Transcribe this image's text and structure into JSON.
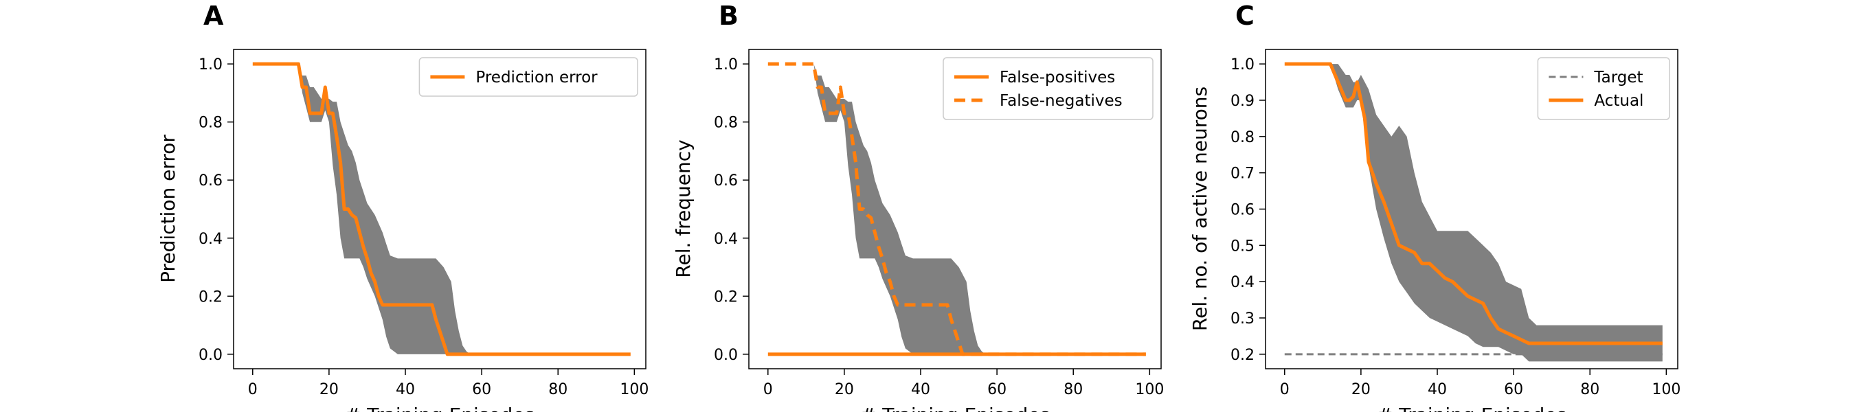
{
  "colors": {
    "orange": "#ff7f0e",
    "band": "#808080",
    "target": "#808080"
  },
  "chart_data": [
    {
      "type": "line",
      "panel_letter": "A",
      "xlabel": "# Training Episodes",
      "ylabel": "Prediction error",
      "xlim": [
        -5,
        103
      ],
      "ylim": [
        -0.05,
        1.05
      ],
      "xticks": [
        0,
        20,
        40,
        60,
        80,
        100
      ],
      "yticks": [
        0.0,
        0.2,
        0.4,
        0.6,
        0.8,
        1.0
      ],
      "ytick_labels": [
        "0.0",
        "0.2",
        "0.4",
        "0.6",
        "0.8",
        "1.0"
      ],
      "legend": {
        "position": "top-right",
        "entries": [
          "Prediction error"
        ]
      },
      "band": {
        "x": [
          0,
          12,
          13,
          14,
          15,
          16,
          17,
          18,
          19,
          20,
          21,
          22,
          23,
          24,
          25,
          26,
          27,
          28,
          29,
          30,
          32,
          34,
          35,
          36,
          38,
          40,
          42,
          44,
          46,
          48,
          50,
          52,
          53,
          54,
          55,
          56,
          57,
          58,
          60,
          70,
          80,
          90,
          99
        ],
        "upper": [
          1.0,
          1.0,
          0.96,
          0.96,
          0.92,
          0.92,
          0.9,
          0.88,
          0.88,
          0.88,
          0.87,
          0.87,
          0.8,
          0.76,
          0.72,
          0.7,
          0.66,
          0.6,
          0.56,
          0.52,
          0.48,
          0.42,
          0.38,
          0.34,
          0.33,
          0.33,
          0.33,
          0.33,
          0.33,
          0.33,
          0.3,
          0.25,
          0.15,
          0.08,
          0.03,
          0.01,
          0,
          0,
          0,
          0,
          0,
          0,
          0
        ],
        "lower": [
          1.0,
          1.0,
          0.9,
          0.85,
          0.8,
          0.8,
          0.8,
          0.8,
          0.84,
          0.8,
          0.65,
          0.55,
          0.4,
          0.33,
          0.33,
          0.33,
          0.33,
          0.33,
          0.3,
          0.26,
          0.2,
          0.12,
          0.06,
          0.02,
          0.0,
          0.0,
          0.0,
          0.0,
          0.0,
          0.0,
          0.0,
          0.0,
          0.0,
          0,
          0,
          0,
          0,
          0,
          0,
          0,
          0,
          0,
          0
        ]
      },
      "series": [
        {
          "name": "Prediction error",
          "style": "solid",
          "x": [
            0,
            12,
            13,
            14,
            15,
            16,
            17,
            18,
            19,
            20,
            21,
            22,
            23,
            24,
            25,
            26,
            27,
            28,
            29,
            30,
            31,
            32,
            33,
            34,
            35,
            36,
            37,
            38,
            40,
            42,
            44,
            46,
            47,
            48,
            49,
            50,
            51,
            52,
            55,
            60,
            70,
            80,
            90,
            99
          ],
          "y": [
            1.0,
            1.0,
            0.92,
            0.92,
            0.83,
            0.83,
            0.83,
            0.83,
            0.92,
            0.83,
            0.83,
            0.75,
            0.66,
            0.5,
            0.5,
            0.48,
            0.47,
            0.42,
            0.37,
            0.33,
            0.28,
            0.25,
            0.2,
            0.17,
            0.17,
            0.17,
            0.17,
            0.17,
            0.17,
            0.17,
            0.17,
            0.17,
            0.17,
            0.12,
            0.08,
            0.04,
            0.0,
            0.0,
            0.0,
            0.0,
            0.0,
            0.0,
            0.0,
            0.0
          ]
        }
      ]
    },
    {
      "type": "line",
      "panel_letter": "B",
      "xlabel": "# Training Episodes",
      "ylabel": "Rel. frequency",
      "xlim": [
        -5,
        103
      ],
      "ylim": [
        -0.05,
        1.05
      ],
      "xticks": [
        0,
        20,
        40,
        60,
        80,
        100
      ],
      "yticks": [
        0.0,
        0.2,
        0.4,
        0.6,
        0.8,
        1.0
      ],
      "ytick_labels": [
        "0.0",
        "0.2",
        "0.4",
        "0.6",
        "0.8",
        "1.0"
      ],
      "legend": {
        "position": "top-right",
        "entries": [
          "False-positives",
          "False-negatives"
        ]
      },
      "band": {
        "x": [
          0,
          12,
          13,
          14,
          15,
          16,
          17,
          18,
          19,
          20,
          21,
          22,
          23,
          24,
          25,
          26,
          27,
          28,
          29,
          30,
          32,
          34,
          35,
          36,
          38,
          40,
          42,
          44,
          46,
          48,
          50,
          52,
          53,
          54,
          55,
          56,
          57,
          58,
          60,
          70,
          80,
          90,
          99
        ],
        "upper": [
          1.0,
          1.0,
          0.96,
          0.96,
          0.92,
          0.92,
          0.9,
          0.88,
          0.88,
          0.88,
          0.87,
          0.87,
          0.8,
          0.76,
          0.72,
          0.7,
          0.66,
          0.6,
          0.56,
          0.52,
          0.48,
          0.42,
          0.38,
          0.34,
          0.33,
          0.33,
          0.33,
          0.33,
          0.33,
          0.33,
          0.3,
          0.25,
          0.15,
          0.08,
          0.03,
          0.01,
          0,
          0,
          0,
          0,
          0,
          0,
          0
        ],
        "lower": [
          1.0,
          1.0,
          0.9,
          0.85,
          0.8,
          0.8,
          0.8,
          0.8,
          0.84,
          0.8,
          0.65,
          0.55,
          0.4,
          0.33,
          0.33,
          0.33,
          0.33,
          0.33,
          0.3,
          0.26,
          0.2,
          0.12,
          0.06,
          0.02,
          0.0,
          0.0,
          0.0,
          0.0,
          0.0,
          0.0,
          0.0,
          0.0,
          0.0,
          0,
          0,
          0,
          0,
          0,
          0,
          0,
          0,
          0,
          0
        ]
      },
      "series": [
        {
          "name": "False-positives",
          "style": "solid",
          "x": [
            0,
            99
          ],
          "y": [
            0.0,
            0.0
          ]
        },
        {
          "name": "False-negatives",
          "style": "dashed",
          "x": [
            0,
            12,
            13,
            14,
            15,
            16,
            17,
            18,
            19,
            20,
            21,
            22,
            23,
            24,
            25,
            26,
            27,
            28,
            29,
            30,
            31,
            32,
            33,
            34,
            35,
            36,
            37,
            38,
            40,
            42,
            44,
            46,
            47,
            48,
            49,
            50,
            51,
            52,
            55,
            60,
            70,
            80,
            90,
            99
          ],
          "y": [
            1.0,
            1.0,
            0.92,
            0.92,
            0.83,
            0.83,
            0.83,
            0.83,
            0.92,
            0.83,
            0.83,
            0.75,
            0.66,
            0.5,
            0.5,
            0.48,
            0.47,
            0.42,
            0.37,
            0.33,
            0.28,
            0.25,
            0.2,
            0.17,
            0.17,
            0.17,
            0.17,
            0.17,
            0.17,
            0.17,
            0.17,
            0.17,
            0.17,
            0.12,
            0.08,
            0.04,
            0.0,
            0.0,
            0.0,
            0.0,
            0.0,
            0.0,
            0.0,
            0.0
          ]
        }
      ]
    },
    {
      "type": "line",
      "panel_letter": "C",
      "xlabel": "# Training Episodes",
      "ylabel": "Rel. no. of active neurons",
      "xlim": [
        -5,
        103
      ],
      "ylim": [
        0.16,
        1.04
      ],
      "xticks": [
        0,
        20,
        40,
        60,
        80,
        100
      ],
      "yticks": [
        0.2,
        0.3,
        0.4,
        0.5,
        0.6,
        0.7,
        0.8,
        0.9,
        1.0
      ],
      "ytick_labels": [
        "0.2",
        "0.3",
        "0.4",
        "0.5",
        "0.6",
        "0.7",
        "0.8",
        "0.9",
        "1.0"
      ],
      "legend": {
        "position": "top-right",
        "entries": [
          "Target",
          "Actual"
        ]
      },
      "band": {
        "x": [
          0,
          12,
          14,
          16,
          17,
          18,
          19,
          20,
          22,
          24,
          26,
          28,
          30,
          32,
          34,
          36,
          38,
          40,
          44,
          48,
          50,
          52,
          54,
          56,
          58,
          60,
          62,
          64,
          66,
          70,
          80,
          90,
          99
        ],
        "upper": [
          1.0,
          1.0,
          1.0,
          0.97,
          0.97,
          0.95,
          0.95,
          0.97,
          0.93,
          0.86,
          0.83,
          0.8,
          0.83,
          0.8,
          0.7,
          0.62,
          0.58,
          0.54,
          0.54,
          0.54,
          0.52,
          0.5,
          0.48,
          0.45,
          0.4,
          0.39,
          0.38,
          0.3,
          0.28,
          0.28,
          0.28,
          0.28,
          0.28
        ],
        "lower": [
          1.0,
          1.0,
          0.93,
          0.88,
          0.88,
          0.88,
          0.9,
          0.9,
          0.72,
          0.6,
          0.52,
          0.45,
          0.4,
          0.37,
          0.34,
          0.32,
          0.3,
          0.29,
          0.27,
          0.25,
          0.23,
          0.22,
          0.22,
          0.22,
          0.21,
          0.2,
          0.2,
          0.18,
          0.18,
          0.18,
          0.18,
          0.18,
          0.18
        ]
      },
      "series": [
        {
          "name": "Target",
          "style": "dashed-thin",
          "x": [
            0,
            99
          ],
          "y": [
            0.2,
            0.2
          ]
        },
        {
          "name": "Actual",
          "style": "solid",
          "x": [
            0,
            12,
            14,
            16,
            17,
            18,
            19,
            20,
            21,
            22,
            24,
            26,
            28,
            30,
            32,
            34,
            36,
            38,
            40,
            42,
            44,
            46,
            48,
            50,
            52,
            54,
            56,
            58,
            60,
            62,
            64,
            66,
            70,
            80,
            90,
            99
          ],
          "y": [
            1.0,
            1.0,
            0.95,
            0.9,
            0.9,
            0.91,
            0.95,
            0.9,
            0.85,
            0.73,
            0.67,
            0.62,
            0.56,
            0.5,
            0.49,
            0.48,
            0.45,
            0.45,
            0.43,
            0.41,
            0.4,
            0.38,
            0.36,
            0.35,
            0.34,
            0.3,
            0.27,
            0.26,
            0.25,
            0.24,
            0.23,
            0.23,
            0.23,
            0.23,
            0.23,
            0.23
          ]
        }
      ]
    }
  ]
}
